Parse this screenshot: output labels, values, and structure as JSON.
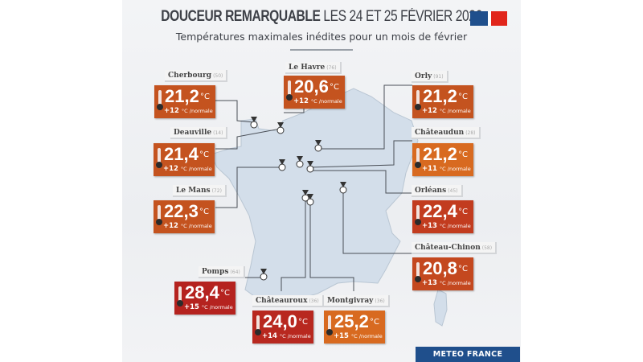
{
  "header": {
    "title_bold": "DOUCEUR REMARQUABLE",
    "title_light": "LES 24 ET 25 FÉVRIER 2026",
    "subtitle": "Températures maximales inédites pour un mois de février"
  },
  "colors": {
    "orange_brown": "#c4531f",
    "orange": "#d86a20",
    "red": "#b5231f",
    "red_orange": "#c23c1f",
    "banner": "#1f4f8c",
    "map": "#d3deea"
  },
  "unit": "°C",
  "anomaly_suffix": "°C /normale",
  "stations": [
    {
      "name": "Cherbourg",
      "dept": "(50)",
      "temp": "21,2",
      "anomaly": "+12",
      "color": "#c4531f"
    },
    {
      "name": "Le Havre",
      "dept": "(76)",
      "temp": "20,6",
      "anomaly": "+12",
      "color": "#c4531f"
    },
    {
      "name": "Orly",
      "dept": "(91)",
      "temp": "21,2",
      "anomaly": "+12",
      "color": "#c4531f"
    },
    {
      "name": "Deauville",
      "dept": "(14)",
      "temp": "21,4",
      "anomaly": "+12",
      "color": "#c4531f"
    },
    {
      "name": "Châteaudun",
      "dept": "(28)",
      "temp": "21,2",
      "anomaly": "+11",
      "color": "#d86a20"
    },
    {
      "name": "Le Mans",
      "dept": "(72)",
      "temp": "22,3",
      "anomaly": "+12",
      "color": "#c4531f"
    },
    {
      "name": "Orléans",
      "dept": "(45)",
      "temp": "22,4",
      "anomaly": "+13",
      "color": "#c23c1f"
    },
    {
      "name": "Château-Chinon",
      "dept": "(58)",
      "temp": "20,8",
      "anomaly": "+13",
      "color": "#c4481f"
    },
    {
      "name": "Pomps",
      "dept": "(64)",
      "temp": "28,4",
      "anomaly": "+15",
      "color": "#b5231f"
    },
    {
      "name": "Châteauroux",
      "dept": "(36)",
      "temp": "24,0",
      "anomaly": "+14",
      "color": "#b8281f"
    },
    {
      "name": "Montgivray",
      "dept": "(36)",
      "temp": "25,2",
      "anomaly": "+15",
      "color": "#d86a20"
    }
  ],
  "footer": {
    "brand": "METEO FRANCE"
  }
}
